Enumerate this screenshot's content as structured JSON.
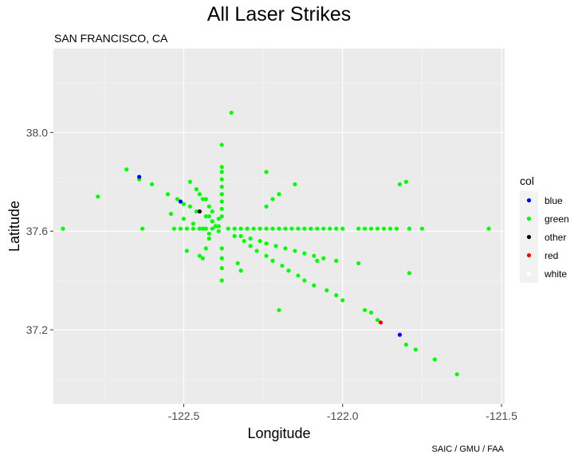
{
  "chart_data": {
    "type": "scatter",
    "title": "All Laser Strikes",
    "subtitle": "SAN FRANCISCO, CA",
    "caption": "SAIC / GMU / FAA",
    "xlabel": "Longitude",
    "ylabel": "Latitude",
    "xlim": [
      -122.91,
      -121.49
    ],
    "ylim": [
      36.9,
      38.34
    ],
    "xticks": [
      -122.5,
      -122.0,
      -121.5
    ],
    "xtick_labels": [
      "-122.5",
      "-122.0",
      "-121.5"
    ],
    "yticks": [
      37.2,
      37.6,
      38.0
    ],
    "ytick_labels": [
      "37.2",
      "37.6",
      "38.0"
    ],
    "grid": true,
    "legend": {
      "title": "col",
      "placement": "right",
      "entries": [
        {
          "label": "blue",
          "color": "#0000ff"
        },
        {
          "label": "green",
          "color": "#00ff00"
        },
        {
          "label": "other",
          "color": "#000000"
        },
        {
          "label": "red",
          "color": "#ff0000"
        },
        {
          "label": "white",
          "color": "#ffffff"
        }
      ]
    },
    "series": [
      {
        "name": "green",
        "color": "#00ff00",
        "points": [
          [
            -122.35,
            38.08
          ],
          [
            -122.38,
            37.95
          ],
          [
            -122.38,
            37.86
          ],
          [
            -122.38,
            37.84
          ],
          [
            -122.38,
            37.81
          ],
          [
            -122.38,
            37.78
          ],
          [
            -122.38,
            37.75
          ],
          [
            -122.38,
            37.72
          ],
          [
            -122.38,
            37.69
          ],
          [
            -122.38,
            37.66
          ],
          [
            -122.38,
            37.53
          ],
          [
            -122.38,
            37.49
          ],
          [
            -122.38,
            37.45
          ],
          [
            -122.38,
            37.4
          ],
          [
            -122.43,
            37.73
          ],
          [
            -122.42,
            37.66
          ],
          [
            -122.41,
            37.64
          ],
          [
            -122.4,
            37.62
          ],
          [
            -122.39,
            37.6
          ],
          [
            -122.42,
            37.57
          ],
          [
            -122.43,
            37.53
          ],
          [
            -122.45,
            37.5
          ],
          [
            -122.68,
            37.85
          ],
          [
            -122.64,
            37.81
          ],
          [
            -122.6,
            37.79
          ],
          [
            -122.55,
            37.75
          ],
          [
            -122.52,
            37.73
          ],
          [
            -122.5,
            37.71
          ],
          [
            -122.48,
            37.7
          ],
          [
            -122.46,
            37.68
          ],
          [
            -122.43,
            37.66
          ],
          [
            -122.41,
            37.64
          ],
          [
            -122.39,
            37.62
          ],
          [
            -122.48,
            37.8
          ],
          [
            -122.46,
            37.77
          ],
          [
            -122.45,
            37.75
          ],
          [
            -122.44,
            37.73
          ],
          [
            -122.42,
            37.7
          ],
          [
            -122.41,
            37.68
          ],
          [
            -122.39,
            37.65
          ],
          [
            -122.54,
            37.67
          ],
          [
            -122.5,
            37.65
          ],
          [
            -122.47,
            37.63
          ],
          [
            -122.44,
            37.61
          ],
          [
            -122.42,
            37.59
          ],
          [
            -122.53,
            37.61
          ],
          [
            -122.51,
            37.61
          ],
          [
            -122.49,
            37.61
          ],
          [
            -122.47,
            37.61
          ],
          [
            -122.45,
            37.61
          ],
          [
            -122.43,
            37.61
          ],
          [
            -122.41,
            37.61
          ],
          [
            -122.36,
            37.61
          ],
          [
            -122.34,
            37.61
          ],
          [
            -122.32,
            37.61
          ],
          [
            -122.3,
            37.61
          ],
          [
            -122.28,
            37.61
          ],
          [
            -122.26,
            37.61
          ],
          [
            -122.24,
            37.61
          ],
          [
            -122.22,
            37.61
          ],
          [
            -122.2,
            37.61
          ],
          [
            -122.18,
            37.61
          ],
          [
            -122.16,
            37.61
          ],
          [
            -122.14,
            37.61
          ],
          [
            -122.12,
            37.61
          ],
          [
            -122.1,
            37.61
          ],
          [
            -122.08,
            37.61
          ],
          [
            -122.06,
            37.61
          ],
          [
            -122.04,
            37.61
          ],
          [
            -122.02,
            37.61
          ],
          [
            -122.0,
            37.61
          ],
          [
            -121.95,
            37.61
          ],
          [
            -121.93,
            37.61
          ],
          [
            -121.91,
            37.61
          ],
          [
            -121.89,
            37.61
          ],
          [
            -121.87,
            37.61
          ],
          [
            -121.85,
            37.61
          ],
          [
            -121.83,
            37.61
          ],
          [
            -121.79,
            37.61
          ],
          [
            -121.75,
            37.61
          ],
          [
            -122.88,
            37.61
          ],
          [
            -122.63,
            37.61
          ],
          [
            -121.54,
            37.61
          ],
          [
            -122.77,
            37.74
          ],
          [
            -122.49,
            37.52
          ],
          [
            -122.44,
            37.49
          ],
          [
            -122.34,
            37.58
          ],
          [
            -122.31,
            37.56
          ],
          [
            -122.29,
            37.54
          ],
          [
            -122.27,
            37.52
          ],
          [
            -122.24,
            37.5
          ],
          [
            -122.22,
            37.48
          ],
          [
            -122.19,
            37.46
          ],
          [
            -122.17,
            37.44
          ],
          [
            -122.14,
            37.42
          ],
          [
            -122.12,
            37.4
          ],
          [
            -122.09,
            37.38
          ],
          [
            -122.05,
            37.36
          ],
          [
            -122.02,
            37.34
          ],
          [
            -122.0,
            37.32
          ],
          [
            -121.93,
            37.28
          ],
          [
            -121.91,
            37.27
          ],
          [
            -121.89,
            37.24
          ],
          [
            -121.8,
            37.14
          ],
          [
            -121.77,
            37.12
          ],
          [
            -121.71,
            37.08
          ],
          [
            -121.64,
            37.02
          ],
          [
            -122.32,
            37.58
          ],
          [
            -122.29,
            37.57
          ],
          [
            -122.26,
            37.56
          ],
          [
            -122.24,
            37.55
          ],
          [
            -122.21,
            37.54
          ],
          [
            -122.18,
            37.53
          ],
          [
            -122.15,
            37.52
          ],
          [
            -122.12,
            37.51
          ],
          [
            -122.09,
            37.5
          ],
          [
            -122.06,
            37.49
          ],
          [
            -122.02,
            37.48
          ],
          [
            -122.33,
            37.47
          ],
          [
            -122.32,
            37.44
          ],
          [
            -122.24,
            37.7
          ],
          [
            -122.22,
            37.73
          ],
          [
            -122.2,
            37.75
          ],
          [
            -122.15,
            37.79
          ],
          [
            -122.24,
            37.84
          ],
          [
            -122.2,
            37.28
          ],
          [
            -121.95,
            37.47
          ],
          [
            -122.08,
            37.48
          ],
          [
            -121.82,
            37.79
          ],
          [
            -121.8,
            37.8
          ],
          [
            -121.79,
            37.43
          ]
        ]
      },
      {
        "name": "blue",
        "color": "#0000ff",
        "points": [
          [
            -122.64,
            37.82
          ],
          [
            -122.51,
            37.72
          ],
          [
            -121.82,
            37.18
          ]
        ]
      },
      {
        "name": "other",
        "color": "#000000",
        "points": [
          [
            -122.45,
            37.68
          ]
        ]
      },
      {
        "name": "red",
        "color": "#ff0000",
        "points": [
          [
            -121.88,
            37.23
          ]
        ]
      }
    ]
  }
}
